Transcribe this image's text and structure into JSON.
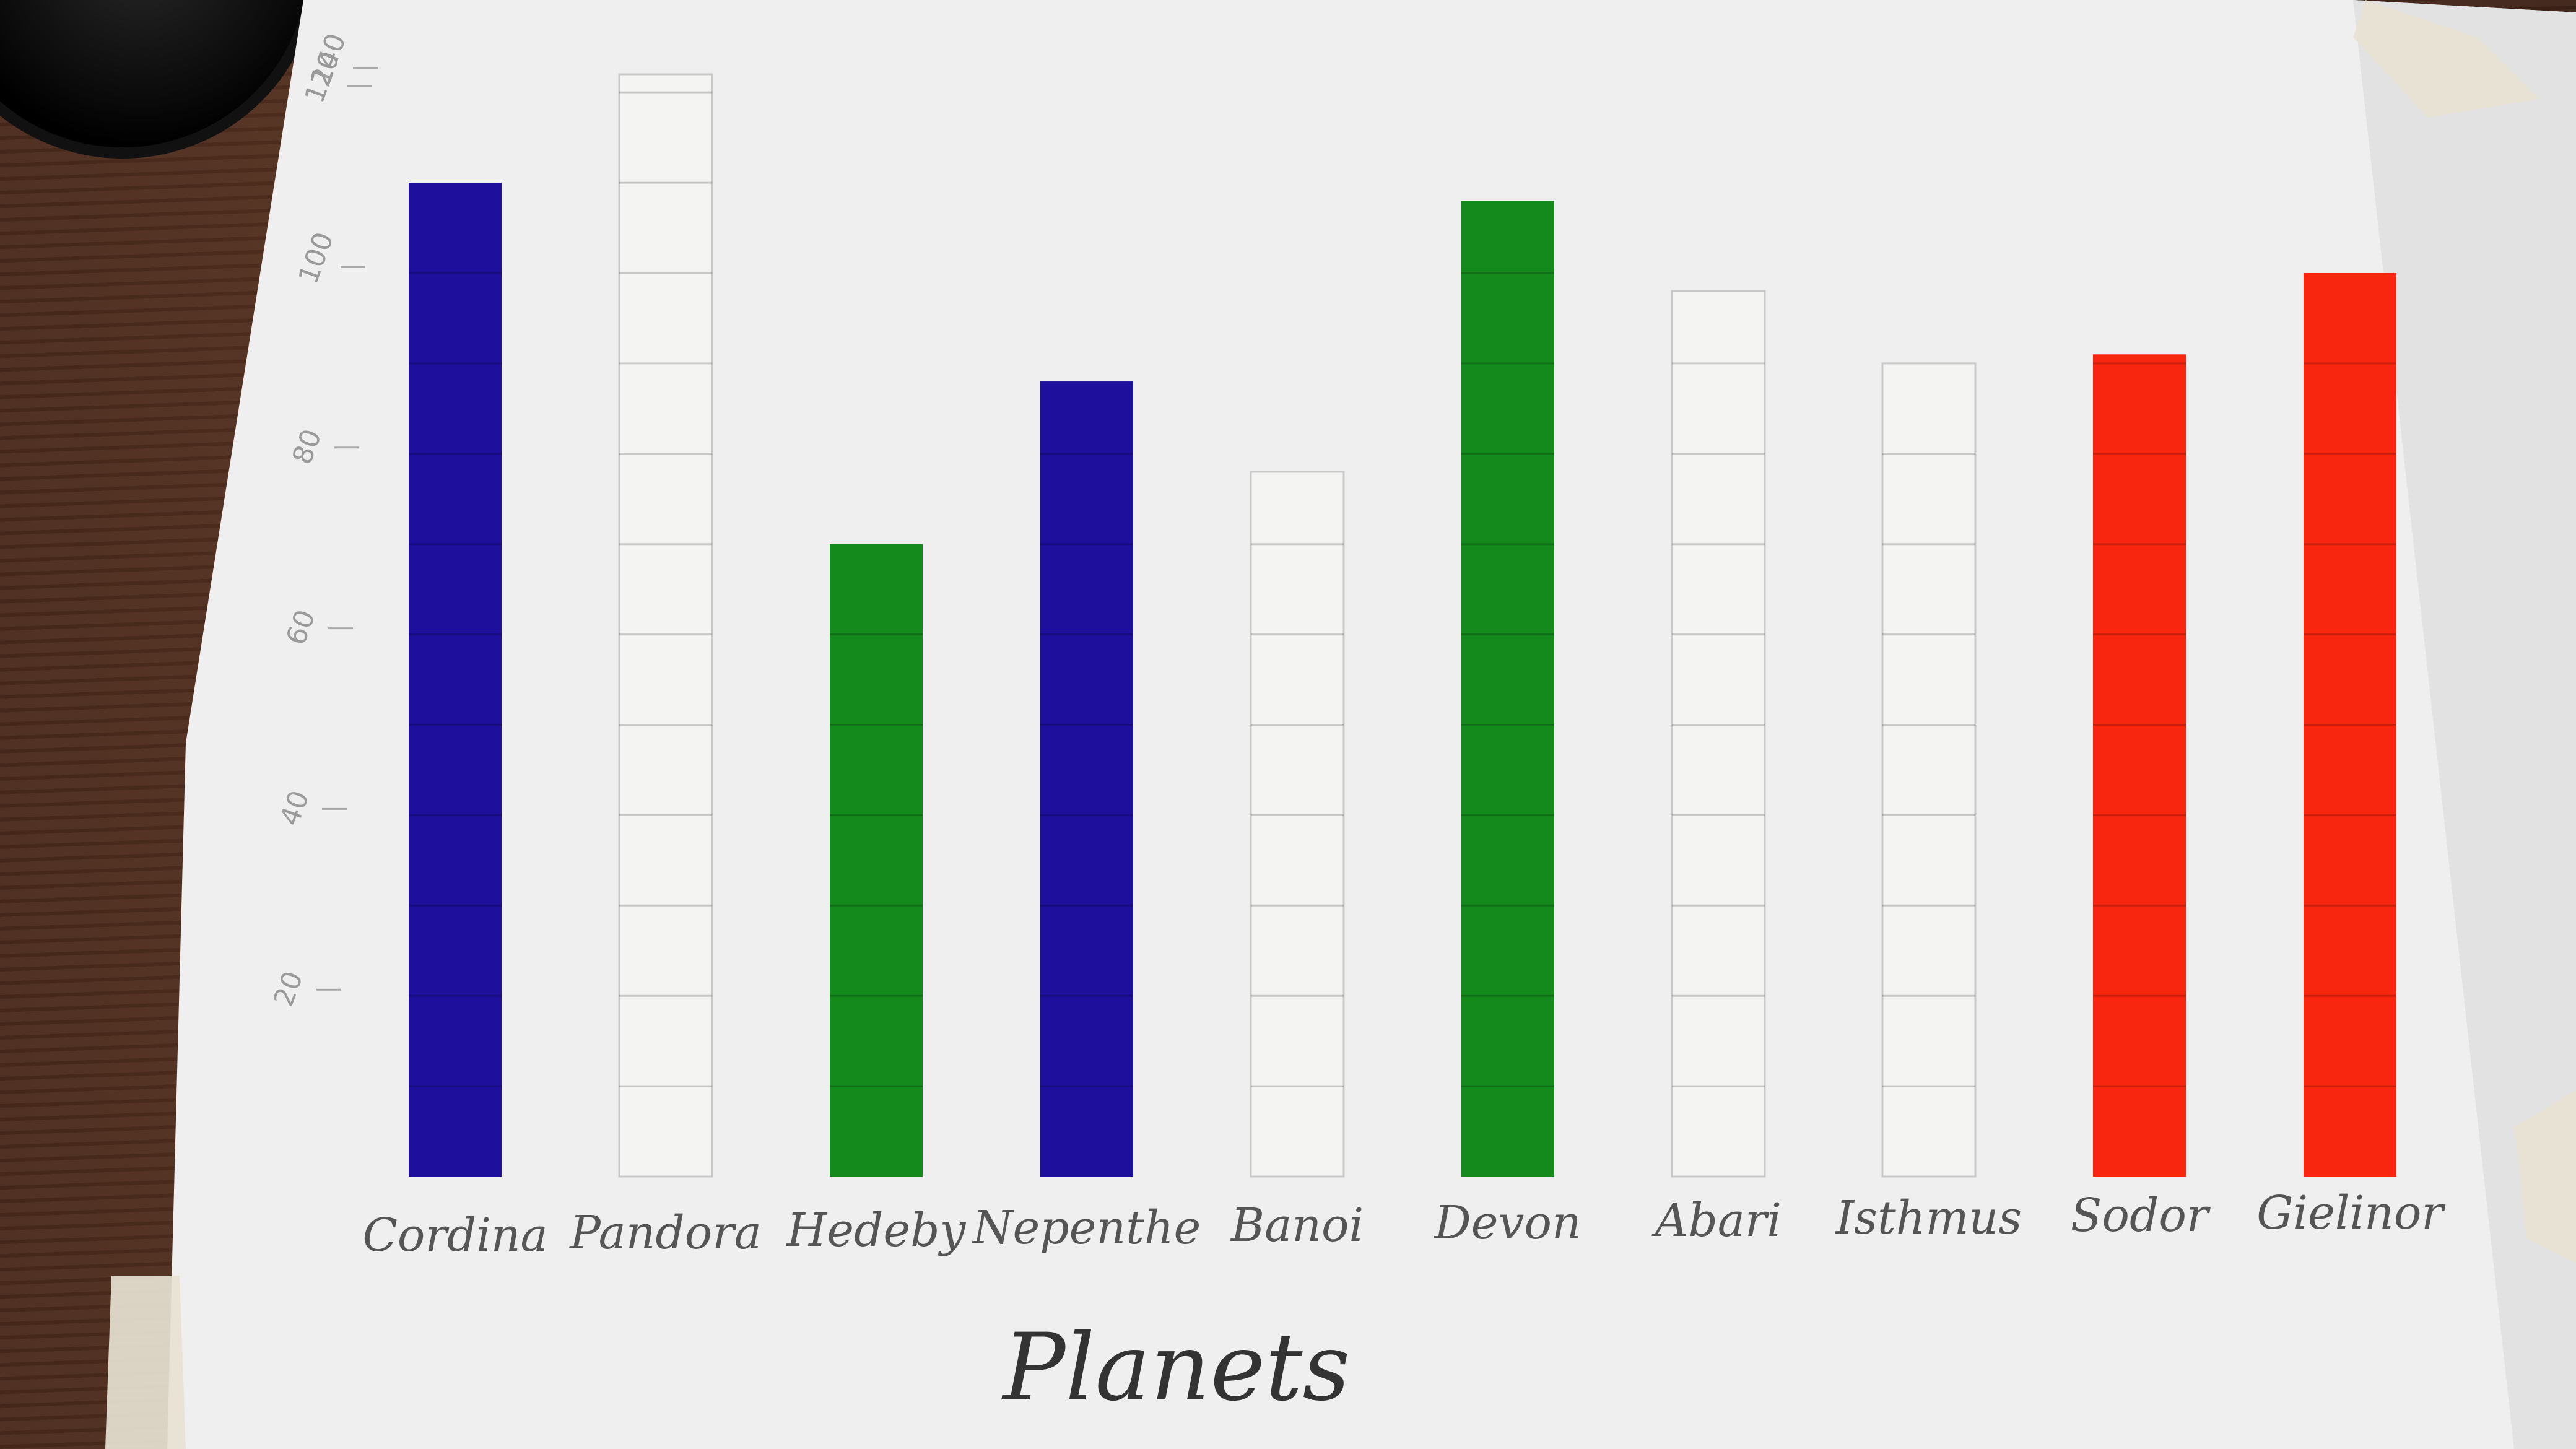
{
  "chart_data": {
    "type": "bar",
    "xlabel": "Planets",
    "ylabel": "",
    "ylim": [
      0,
      120
    ],
    "yticks": [
      "20",
      "40",
      "60",
      "80",
      "100",
      "120",
      "140"
    ],
    "grid": false,
    "legend": "none",
    "categories": [
      "Cordina",
      "Pandora",
      "Hedeby",
      "Nepenthe",
      "Banoi",
      "Devon",
      "Abari",
      "Isthmus",
      "Sodor",
      "Gielinor"
    ],
    "values": [
      110,
      122,
      70,
      88,
      78,
      108,
      98,
      90,
      91,
      100
    ],
    "colors": [
      "#1e0f9c",
      "#f4f4f2",
      "#14891c",
      "#1e0f9c",
      "#f4f4f2",
      "#14891c",
      "#f4f4f2",
      "#f4f4f2",
      "#f8260e",
      "#f8260e"
    ]
  }
}
